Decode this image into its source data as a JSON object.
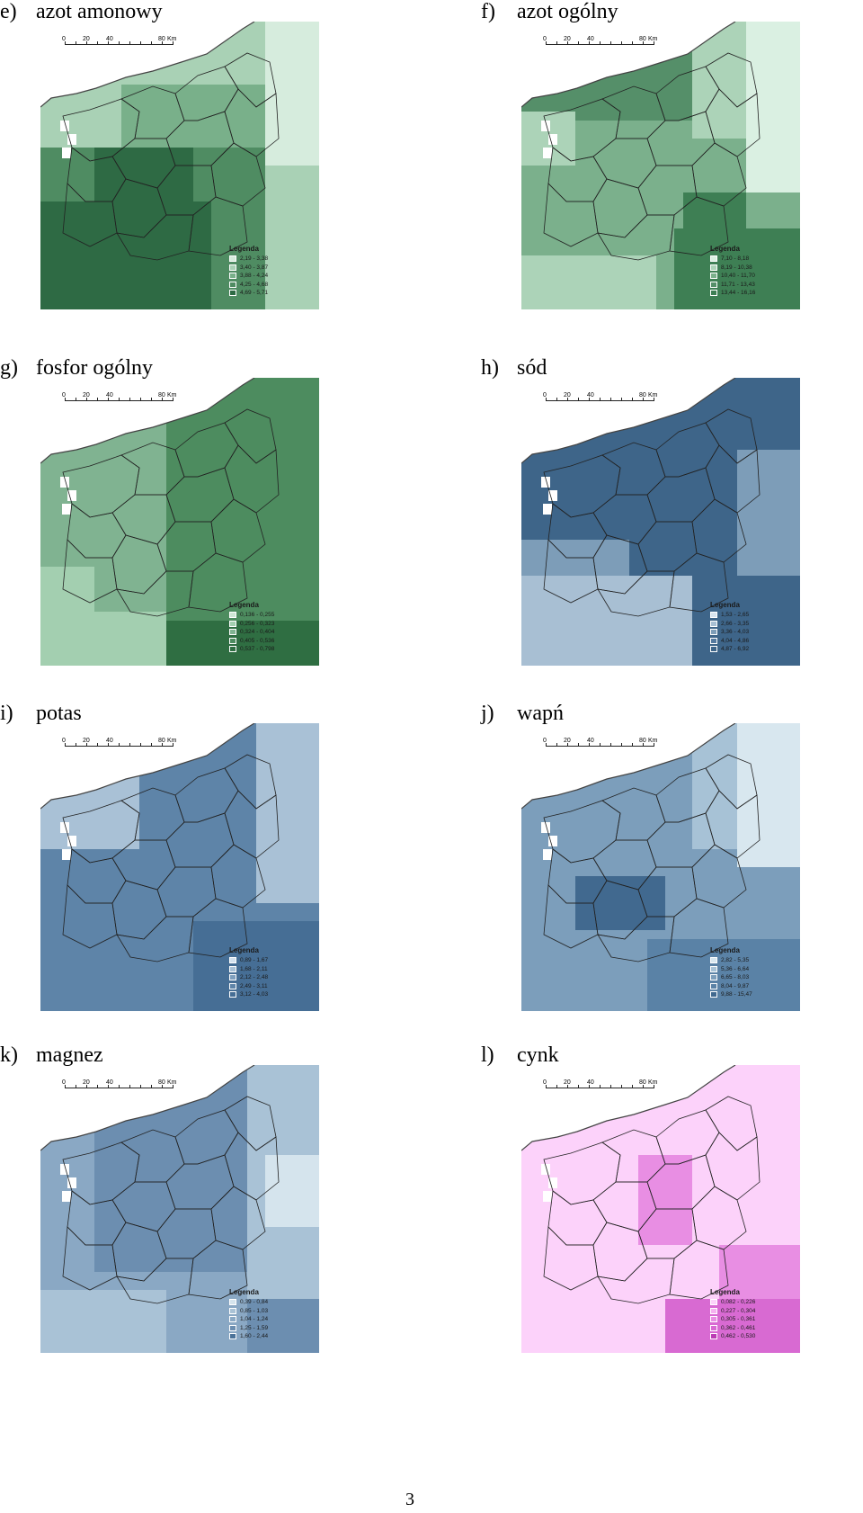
{
  "page_number": "3",
  "scale": {
    "ticks": [
      "0",
      "20",
      "40",
      "80"
    ],
    "unit": "Km"
  },
  "legend_title": "Legenda",
  "panels": [
    {
      "letter": "e)",
      "title": "azot amonowy",
      "palette": [
        "#ffffff",
        "#d6ecdd",
        "#a9d1b5",
        "#79b08a",
        "#4f8c62",
        "#2e6a44"
      ],
      "legend": [
        "2,19 - 3,38",
        "3,40 - 3,87",
        "3,88 - 4,24",
        "4,25 - 4,68",
        "4,69 - 5,71"
      ],
      "pattern": "e"
    },
    {
      "letter": "f)",
      "title": "azot ogólny",
      "palette": [
        "#ffffff",
        "#daf0e2",
        "#acd3b8",
        "#7bb08c",
        "#558f69",
        "#3e7f54"
      ],
      "legend": [
        "7,10 - 8,18",
        "8,19 - 10,38",
        "10,40 - 11,70",
        "11,71 - 13,43",
        "13,44 - 16,16"
      ],
      "pattern": "f"
    },
    {
      "letter": "g)",
      "title": "fosfor ogólny",
      "palette": [
        "#ffffff",
        "#cfe6d5",
        "#a3cfb0",
        "#80b391",
        "#4d8c5f",
        "#2f6e42"
      ],
      "legend": [
        "0,136 - 0,255",
        "0,256 - 0,323",
        "0,324 - 0,404",
        "0,405 - 0,536",
        "0,537 - 0,798"
      ],
      "pattern": "g"
    },
    {
      "letter": "h)",
      "title": "sód",
      "palette": [
        "#ffffff",
        "#d9e4ee",
        "#a8bfd3",
        "#7d9db8",
        "#557a9f",
        "#3e6589"
      ],
      "legend": [
        "1,53 - 2,65",
        "2,66 - 3,35",
        "3,36 - 4,03",
        "4,04 - 4,86",
        "4,87 - 6,92"
      ],
      "pattern": "h"
    },
    {
      "letter": "i)",
      "title": "potas",
      "palette": [
        "#ffffff",
        "#d4e2ee",
        "#a9c1d6",
        "#7e9fbe",
        "#5e84a8",
        "#466e95"
      ],
      "legend": [
        "0,89 - 1,67",
        "1,68 - 2,11",
        "2,12 - 2,48",
        "2,49 - 3,11",
        "3,12 - 4,03"
      ],
      "pattern": "i"
    },
    {
      "letter": "j)",
      "title": "wapń",
      "palette": [
        "#ffffff",
        "#d8e7ef",
        "#a7c2d6",
        "#7c9ebb",
        "#5a82a6",
        "#41698f"
      ],
      "legend": [
        "2,82 - 5,35",
        "5,36 - 6,64",
        "6,65 - 8,03",
        "8,04 - 9,87",
        "9,88 - 15,47"
      ],
      "pattern": "j"
    },
    {
      "letter": "k)",
      "title": "magnez",
      "palette": [
        "#ffffff",
        "#d5e4ed",
        "#a9c2d6",
        "#8aa8c4",
        "#6c8eb0",
        "#4c7399"
      ],
      "legend": [
        "0,39 - 0,84",
        "0,85 - 1,03",
        "1,04 - 1,24",
        "1,25 - 1,59",
        "1,60 - 2,44"
      ],
      "pattern": "k"
    },
    {
      "letter": "l)",
      "title": "cynk",
      "palette": [
        "#ffffff",
        "#fcd2fa",
        "#f5b1f0",
        "#e88ee3",
        "#d86ad2",
        "#bb3cb4"
      ],
      "legend": [
        "0,082 - 0,226",
        "0,227 - 0,304",
        "0,305 - 0,361",
        "0,362 - 0,461",
        "0,462 - 0,530"
      ],
      "pattern": "l"
    }
  ]
}
